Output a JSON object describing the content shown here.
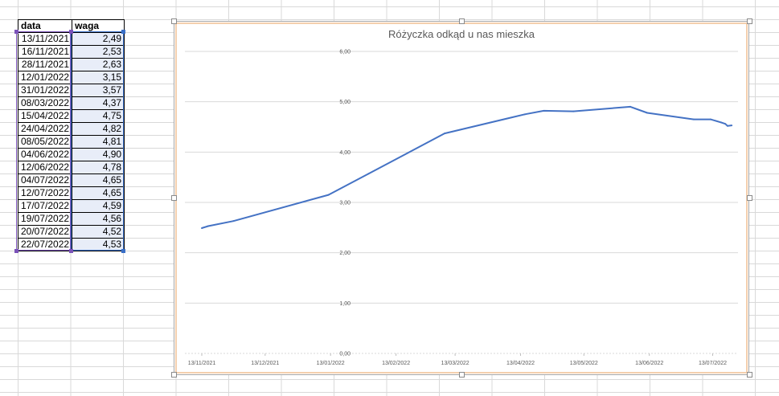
{
  "sheet": {
    "headers": [
      "data",
      "waga"
    ],
    "rows": [
      [
        "13/11/2021",
        "2,49"
      ],
      [
        "16/11/2021",
        "2,53"
      ],
      [
        "28/11/2021",
        "2,63"
      ],
      [
        "12/01/2022",
        "3,15"
      ],
      [
        "31/01/2022",
        "3,57"
      ],
      [
        "08/03/2022",
        "4,37"
      ],
      [
        "15/04/2022",
        "4,75"
      ],
      [
        "24/04/2022",
        "4,82"
      ],
      [
        "08/05/2022",
        "4,81"
      ],
      [
        "04/06/2022",
        "4,90"
      ],
      [
        "12/06/2022",
        "4,78"
      ],
      [
        "04/07/2022",
        "4,65"
      ],
      [
        "12/07/2022",
        "4,65"
      ],
      [
        "17/07/2022",
        "4,59"
      ],
      [
        "19/07/2022",
        "4,56"
      ],
      [
        "20/07/2022",
        "4,52"
      ],
      [
        "22/07/2022",
        "4,53"
      ]
    ]
  },
  "colors": {
    "line": "#4472c4",
    "gridline": "#d9d9d9",
    "chart_border_accent": "#f4cfad",
    "selection_date": "#7b53b8",
    "selection_values": "#3a6fc7"
  },
  "chart_data": {
    "type": "line",
    "title": "Różyczka odkąd u nas mieszka",
    "xlabel": "",
    "ylabel": "",
    "x": [
      "2021-11-13",
      "2021-11-16",
      "2021-11-28",
      "2022-01-12",
      "2022-01-31",
      "2022-03-08",
      "2022-04-15",
      "2022-04-24",
      "2022-05-08",
      "2022-06-04",
      "2022-06-12",
      "2022-07-04",
      "2022-07-12",
      "2022-07-17",
      "2022-07-19",
      "2022-07-20",
      "2022-07-22"
    ],
    "values": [
      2.49,
      2.53,
      2.63,
      3.15,
      3.57,
      4.37,
      4.75,
      4.82,
      4.81,
      4.9,
      4.78,
      4.65,
      4.65,
      4.59,
      4.56,
      4.52,
      4.53
    ],
    "ylim": [
      0,
      6
    ],
    "y_ticks": [
      "0,00",
      "1,00",
      "2,00",
      "3,00",
      "4,00",
      "5,00",
      "6,00"
    ],
    "x_ticks": [
      "13/11/2021",
      "13/12/2021",
      "13/01/2022",
      "13/02/2022",
      "13/03/2022",
      "13/04/2022",
      "13/05/2022",
      "13/06/2022",
      "13/07/2022"
    ],
    "x_tick_dates": [
      "2021-11-13",
      "2021-12-13",
      "2022-01-13",
      "2022-02-13",
      "2022-03-13",
      "2022-04-13",
      "2022-05-13",
      "2022-06-13",
      "2022-07-13"
    ],
    "grid": true
  }
}
